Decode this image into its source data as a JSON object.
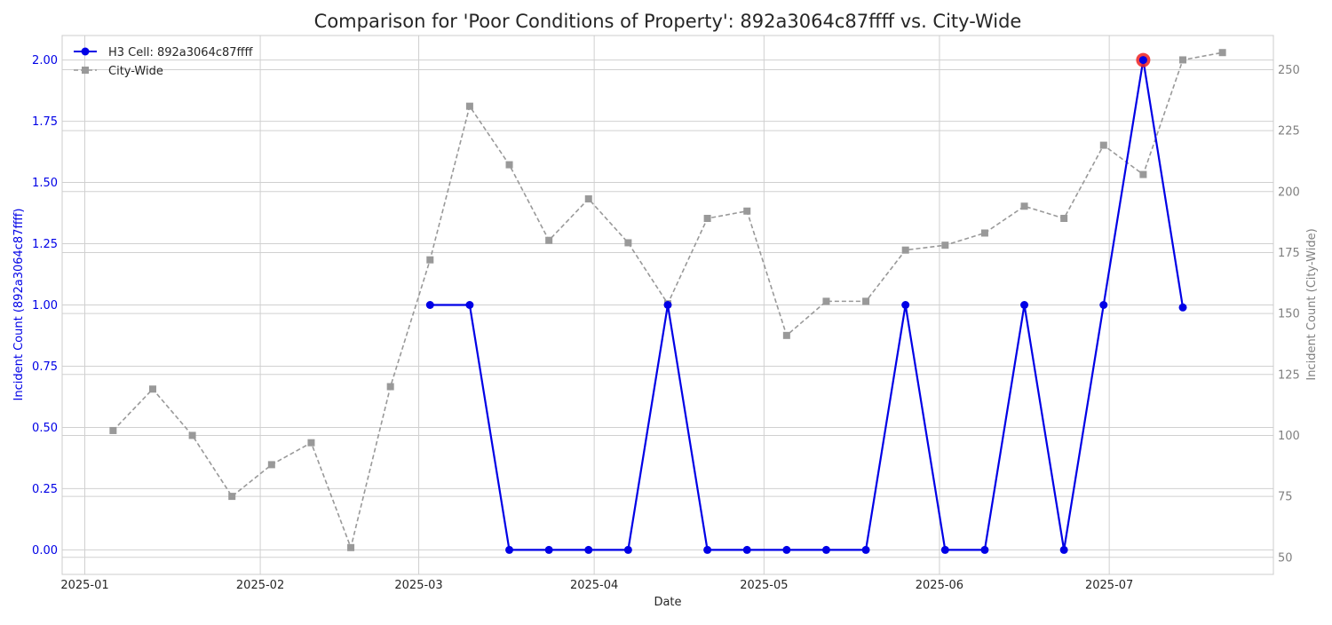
{
  "chart_data": {
    "type": "line",
    "title": "Comparison for 'Poor Conditions of Property': 892a3064c87ffff vs. City-Wide",
    "xlabel": "Date",
    "ylabel_left": "Incident Count (892a3064c87ffff)",
    "ylabel_right": "Incident Count (City-Wide)",
    "x_range": [
      "2024-12-28",
      "2025-07-30"
    ],
    "x_ticks": [
      "2025-01",
      "2025-02",
      "2025-03",
      "2025-04",
      "2025-05",
      "2025-06",
      "2025-07"
    ],
    "ylim_left": [
      -0.1,
      2.1
    ],
    "yticks_left": [
      "0.00",
      "0.25",
      "0.50",
      "0.75",
      "1.00",
      "1.25",
      "1.50",
      "1.75",
      "2.00"
    ],
    "ylim_right": [
      43,
      264
    ],
    "yticks_right": [
      "50",
      "75",
      "100",
      "125",
      "150",
      "175",
      "200",
      "225",
      "250"
    ],
    "grid": true,
    "legend_position": "top-left",
    "colors": {
      "cell": "#0000e6",
      "city": "#999999",
      "highlight": "#ee2222"
    },
    "series": [
      {
        "name": "H3 Cell: 892a3064c87ffff",
        "axis": "left",
        "style": "solid-circle",
        "x": [
          "2025-03-03",
          "2025-03-10",
          "2025-03-17",
          "2025-03-24",
          "2025-03-31",
          "2025-04-07",
          "2025-04-14",
          "2025-04-21",
          "2025-04-28",
          "2025-05-05",
          "2025-05-12",
          "2025-05-19",
          "2025-05-26",
          "2025-06-02",
          "2025-06-09",
          "2025-06-16",
          "2025-06-23",
          "2025-06-30",
          "2025-07-07",
          "2025-07-14"
        ],
        "values": [
          1,
          1,
          0,
          0,
          0,
          0,
          1,
          0,
          0,
          0,
          0,
          0,
          1,
          0,
          0,
          1,
          0,
          1,
          2,
          0.99
        ],
        "highlight_x": "2025-07-07"
      },
      {
        "name": "City-Wide",
        "axis": "right",
        "style": "dashed-square",
        "x": [
          "2025-01-06",
          "2025-01-13",
          "2025-01-20",
          "2025-01-27",
          "2025-02-03",
          "2025-02-10",
          "2025-02-17",
          "2025-02-24",
          "2025-03-03",
          "2025-03-10",
          "2025-03-17",
          "2025-03-24",
          "2025-03-31",
          "2025-04-07",
          "2025-04-14",
          "2025-04-21",
          "2025-04-28",
          "2025-05-05",
          "2025-05-12",
          "2025-05-19",
          "2025-05-26",
          "2025-06-02",
          "2025-06-09",
          "2025-06-16",
          "2025-06-23",
          "2025-06-30",
          "2025-07-07",
          "2025-07-14",
          "2025-07-21"
        ],
        "values": [
          102,
          119,
          100,
          75,
          88,
          97,
          54,
          120,
          172,
          235,
          211,
          180,
          197,
          179,
          154,
          189,
          192,
          141,
          155,
          155,
          176,
          178,
          183,
          194,
          189,
          219,
          207,
          254,
          257
        ]
      }
    ]
  }
}
